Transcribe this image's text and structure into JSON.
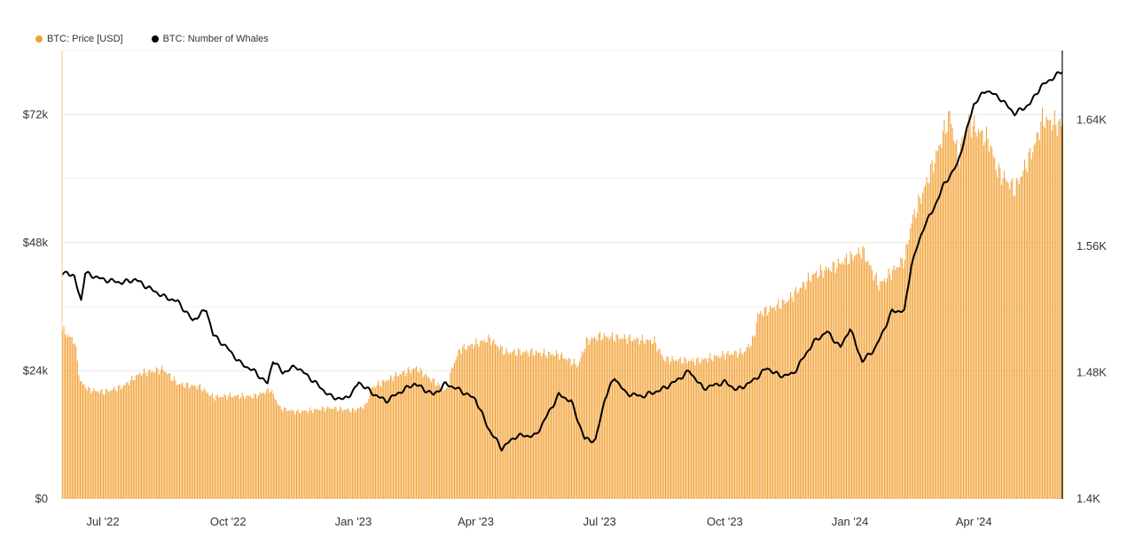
{
  "colors": {
    "price": "#f2a033",
    "whales": "#000000",
    "grid": "#e8e8e8"
  },
  "legend": [
    {
      "label": "BTC: Price [USD]",
      "color": "#f2a033"
    },
    {
      "label": "BTC: Number of Whales",
      "color": "#000000"
    }
  ],
  "chart_data": {
    "type": "bar",
    "x_range": [
      "2022-06-01",
      "2024-06-05"
    ],
    "x_ticks": [
      {
        "date": "2022-07-01",
        "label": "Jul '22"
      },
      {
        "date": "2022-10-01",
        "label": "Oct '22"
      },
      {
        "date": "2023-01-01",
        "label": "Jan '23"
      },
      {
        "date": "2023-04-01",
        "label": "Apr '23"
      },
      {
        "date": "2023-07-01",
        "label": "Jul '23"
      },
      {
        "date": "2023-10-01",
        "label": "Oct '23"
      },
      {
        "date": "2024-01-01",
        "label": "Jan '24"
      },
      {
        "date": "2024-04-01",
        "label": "Apr '24"
      }
    ],
    "y_left": {
      "min": 0,
      "max": 84000,
      "ticks": [
        0,
        24000,
        48000,
        72000
      ],
      "tick_labels": [
        "$0",
        "$24k",
        "$48k",
        "$72k"
      ]
    },
    "y_right": {
      "min": 1400,
      "max": 1684,
      "ticks": [
        1400,
        1480,
        1560,
        1640
      ],
      "tick_labels": [
        "1.4K",
        "1.48K",
        "1.56K",
        "1.64K"
      ]
    },
    "grid": true,
    "legend_position": "top-left",
    "series": [
      {
        "name": "BTC: Price [USD]",
        "type": "bar",
        "axis": "left",
        "points": [
          [
            "2022-06-01",
            31500
          ],
          [
            "2022-06-10",
            29500
          ],
          [
            "2022-06-14",
            22000
          ],
          [
            "2022-06-20",
            20500
          ],
          [
            "2022-07-01",
            20000
          ],
          [
            "2022-07-15",
            21000
          ],
          [
            "2022-07-28",
            23500
          ],
          [
            "2022-08-14",
            24300
          ],
          [
            "2022-08-25",
            21500
          ],
          [
            "2022-09-10",
            21000
          ],
          [
            "2022-09-20",
            19000
          ],
          [
            "2022-10-01",
            19300
          ],
          [
            "2022-10-20",
            19200
          ],
          [
            "2022-11-01",
            20500
          ],
          [
            "2022-11-08",
            17000
          ],
          [
            "2022-11-20",
            16300
          ],
          [
            "2022-12-15",
            17000
          ],
          [
            "2023-01-01",
            16600
          ],
          [
            "2023-01-10",
            17500
          ],
          [
            "2023-01-14",
            20800
          ],
          [
            "2023-01-31",
            23000
          ],
          [
            "2023-02-16",
            24500
          ],
          [
            "2023-03-10",
            20200
          ],
          [
            "2023-03-15",
            25000
          ],
          [
            "2023-03-20",
            28000
          ],
          [
            "2023-04-11",
            30000
          ],
          [
            "2023-04-22",
            27500
          ],
          [
            "2023-05-10",
            27500
          ],
          [
            "2023-06-01",
            27000
          ],
          [
            "2023-06-15",
            25000
          ],
          [
            "2023-06-21",
            29500
          ],
          [
            "2023-07-01",
            30500
          ],
          [
            "2023-07-15",
            30200
          ],
          [
            "2023-08-10",
            29500
          ],
          [
            "2023-08-17",
            26200
          ],
          [
            "2023-09-10",
            25800
          ],
          [
            "2023-09-30",
            27000
          ],
          [
            "2023-10-15",
            27500
          ],
          [
            "2023-10-22",
            30000
          ],
          [
            "2023-10-25",
            34500
          ],
          [
            "2023-11-15",
            37000
          ],
          [
            "2023-12-05",
            42000
          ],
          [
            "2023-12-20",
            43500
          ],
          [
            "2024-01-10",
            46500
          ],
          [
            "2024-01-22",
            40000
          ],
          [
            "2024-02-10",
            45000
          ],
          [
            "2024-02-15",
            52000
          ],
          [
            "2024-03-01",
            62000
          ],
          [
            "2024-03-14",
            72000
          ],
          [
            "2024-03-20",
            64000
          ],
          [
            "2024-03-28",
            70500
          ],
          [
            "2024-04-12",
            67000
          ],
          [
            "2024-04-18",
            61500
          ],
          [
            "2024-05-01",
            58000
          ],
          [
            "2024-05-15",
            66000
          ],
          [
            "2024-05-21",
            71000
          ],
          [
            "2024-06-05",
            70000
          ]
        ]
      },
      {
        "name": "BTC: Number of Whales",
        "type": "line",
        "axis": "right",
        "points": [
          [
            "2022-06-01",
            1542
          ],
          [
            "2022-06-05",
            1544
          ],
          [
            "2022-06-10",
            1540
          ],
          [
            "2022-06-15",
            1526
          ],
          [
            "2022-06-18",
            1543
          ],
          [
            "2022-07-01",
            1539
          ],
          [
            "2022-07-15",
            1537
          ],
          [
            "2022-07-25",
            1539
          ],
          [
            "2022-08-01",
            1535
          ],
          [
            "2022-08-15",
            1528
          ],
          [
            "2022-08-25",
            1525
          ],
          [
            "2022-09-05",
            1513
          ],
          [
            "2022-09-15",
            1520
          ],
          [
            "2022-09-20",
            1504
          ],
          [
            "2022-10-01",
            1495
          ],
          [
            "2022-10-10",
            1486
          ],
          [
            "2022-10-20",
            1481
          ],
          [
            "2022-10-30",
            1473
          ],
          [
            "2022-11-03",
            1488
          ],
          [
            "2022-11-10",
            1480
          ],
          [
            "2022-11-20",
            1484
          ],
          [
            "2022-12-01",
            1476
          ],
          [
            "2022-12-15",
            1465
          ],
          [
            "2022-12-25",
            1463
          ],
          [
            "2023-01-01",
            1468
          ],
          [
            "2023-01-05",
            1474
          ],
          [
            "2023-01-15",
            1467
          ],
          [
            "2023-01-25",
            1462
          ],
          [
            "2023-02-05",
            1468
          ],
          [
            "2023-02-15",
            1473
          ],
          [
            "2023-03-01",
            1466
          ],
          [
            "2023-03-10",
            1473
          ],
          [
            "2023-03-20",
            1469
          ],
          [
            "2023-04-01",
            1463
          ],
          [
            "2023-04-10",
            1445
          ],
          [
            "2023-04-20",
            1432
          ],
          [
            "2023-05-01",
            1440
          ],
          [
            "2023-05-15",
            1440
          ],
          [
            "2023-06-01",
            1466
          ],
          [
            "2023-06-10",
            1462
          ],
          [
            "2023-06-20",
            1438
          ],
          [
            "2023-06-28",
            1437
          ],
          [
            "2023-07-05",
            1464
          ],
          [
            "2023-07-12",
            1477
          ],
          [
            "2023-07-20",
            1467
          ],
          [
            "2023-08-01",
            1465
          ],
          [
            "2023-08-15",
            1469
          ],
          [
            "2023-08-25",
            1474
          ],
          [
            "2023-09-05",
            1481
          ],
          [
            "2023-09-15",
            1470
          ],
          [
            "2023-10-01",
            1474
          ],
          [
            "2023-10-10",
            1469
          ],
          [
            "2023-10-22",
            1475
          ],
          [
            "2023-11-01",
            1483
          ],
          [
            "2023-11-10",
            1478
          ],
          [
            "2023-11-20",
            1479
          ],
          [
            "2023-12-05",
            1499
          ],
          [
            "2023-12-15",
            1506
          ],
          [
            "2023-12-25",
            1496
          ],
          [
            "2024-01-01",
            1508
          ],
          [
            "2024-01-10",
            1487
          ],
          [
            "2024-01-20",
            1496
          ],
          [
            "2024-02-01",
            1519
          ],
          [
            "2024-02-10",
            1519
          ],
          [
            "2024-02-15",
            1548
          ],
          [
            "2024-02-25",
            1574
          ],
          [
            "2024-03-01",
            1581
          ],
          [
            "2024-03-10",
            1599
          ],
          [
            "2024-03-20",
            1612
          ],
          [
            "2024-04-01",
            1650
          ],
          [
            "2024-04-10",
            1659
          ],
          [
            "2024-04-20",
            1654
          ],
          [
            "2024-05-01",
            1644
          ],
          [
            "2024-05-12",
            1650
          ],
          [
            "2024-05-20",
            1661
          ],
          [
            "2024-06-05",
            1671
          ]
        ]
      }
    ]
  }
}
